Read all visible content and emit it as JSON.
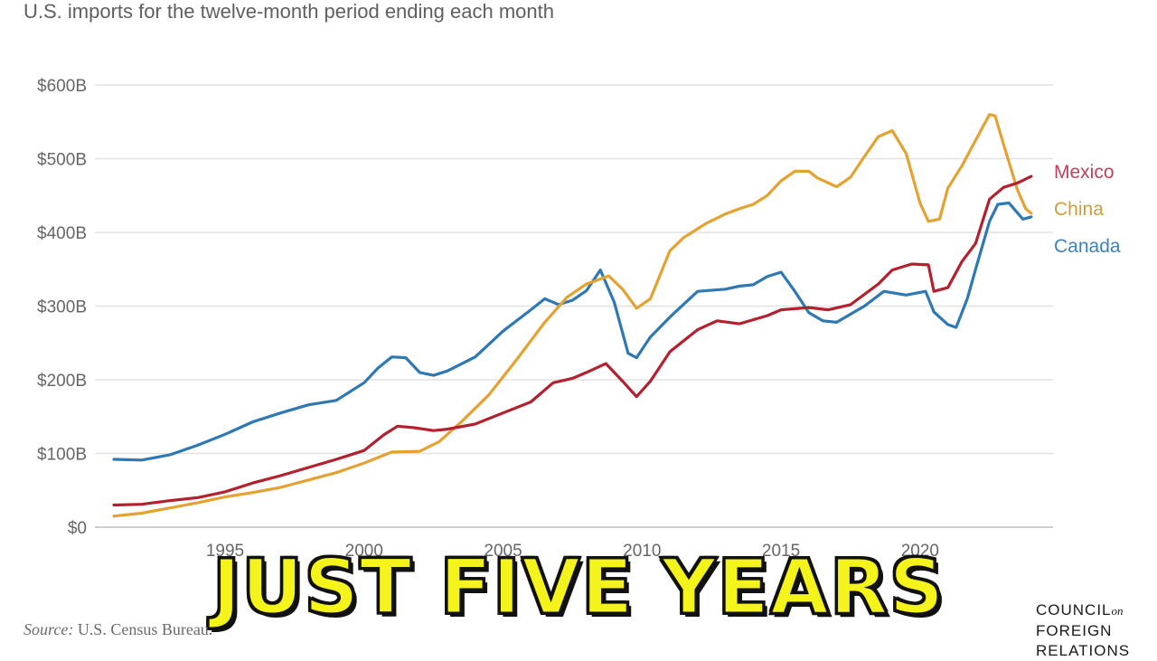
{
  "chart_data": {
    "type": "line",
    "title": "",
    "subtitle": "U.S. imports for the twelve-month period ending each month",
    "xlabel": "",
    "ylabel": "",
    "xlim": [
      1991,
      2024.2
    ],
    "ylim": [
      0,
      600
    ],
    "grid": true,
    "y_ticks": [
      {
        "value": 0,
        "label": "$0"
      },
      {
        "value": 100,
        "label": "$100B"
      },
      {
        "value": 200,
        "label": "$200B"
      },
      {
        "value": 300,
        "label": "$300B"
      },
      {
        "value": 400,
        "label": "$400B"
      },
      {
        "value": 500,
        "label": "$500B"
      },
      {
        "value": 600,
        "label": "$600B"
      }
    ],
    "x_ticks": [
      {
        "value": 1995,
        "label": "1995"
      },
      {
        "value": 2000,
        "label": "2000"
      },
      {
        "value": 2005,
        "label": "2005"
      },
      {
        "value": 2010,
        "label": "2010"
      },
      {
        "value": 2015,
        "label": "2015"
      },
      {
        "value": 2020,
        "label": "2020"
      }
    ],
    "legend_position": "right, at line ends",
    "series": [
      {
        "name": "Mexico",
        "color": "#b3202e",
        "label_color": "#c0425a",
        "points": [
          [
            1991.0,
            30
          ],
          [
            1992.0,
            31
          ],
          [
            1993.0,
            36
          ],
          [
            1994.0,
            40
          ],
          [
            1995.0,
            48
          ],
          [
            1996.0,
            60
          ],
          [
            1997.0,
            70
          ],
          [
            1998.0,
            81
          ],
          [
            1999.0,
            92
          ],
          [
            2000.0,
            104
          ],
          [
            2000.7,
            125
          ],
          [
            2001.2,
            137
          ],
          [
            2001.8,
            135
          ],
          [
            2002.5,
            131
          ],
          [
            2003.0,
            133
          ],
          [
            2004.0,
            140
          ],
          [
            2005.0,
            155
          ],
          [
            2006.0,
            170
          ],
          [
            2006.8,
            196
          ],
          [
            2007.5,
            202
          ],
          [
            2008.0,
            210
          ],
          [
            2008.7,
            222
          ],
          [
            2009.3,
            198
          ],
          [
            2009.8,
            177
          ],
          [
            2010.3,
            198
          ],
          [
            2011.0,
            238
          ],
          [
            2012.0,
            268
          ],
          [
            2012.7,
            280
          ],
          [
            2013.5,
            276
          ],
          [
            2014.5,
            287
          ],
          [
            2015.0,
            295
          ],
          [
            2016.0,
            298
          ],
          [
            2016.7,
            295
          ],
          [
            2017.5,
            302
          ],
          [
            2018.5,
            330
          ],
          [
            2019.0,
            349
          ],
          [
            2019.7,
            357
          ],
          [
            2020.3,
            356
          ],
          [
            2020.5,
            320
          ],
          [
            2021.0,
            325
          ],
          [
            2021.5,
            360
          ],
          [
            2022.0,
            385
          ],
          [
            2022.5,
            445
          ],
          [
            2023.0,
            461
          ],
          [
            2023.5,
            467
          ],
          [
            2024.0,
            476
          ]
        ]
      },
      {
        "name": "China",
        "color": "#e3a231",
        "label_color": "#cf9d3c",
        "points": [
          [
            1991.0,
            15
          ],
          [
            1992.0,
            19
          ],
          [
            1993.0,
            26
          ],
          [
            1994.0,
            33
          ],
          [
            1995.0,
            41
          ],
          [
            1996.0,
            47
          ],
          [
            1997.0,
            54
          ],
          [
            1998.0,
            64
          ],
          [
            1999.0,
            74
          ],
          [
            2000.0,
            87
          ],
          [
            2001.0,
            102
          ],
          [
            2002.0,
            103
          ],
          [
            2002.7,
            116
          ],
          [
            2003.5,
            143
          ],
          [
            2004.5,
            180
          ],
          [
            2005.5,
            228
          ],
          [
            2006.5,
            278
          ],
          [
            2007.3,
            312
          ],
          [
            2008.0,
            330
          ],
          [
            2008.8,
            341
          ],
          [
            2009.3,
            323
          ],
          [
            2009.8,
            297
          ],
          [
            2010.3,
            310
          ],
          [
            2011.0,
            375
          ],
          [
            2011.5,
            393
          ],
          [
            2012.3,
            412
          ],
          [
            2013.0,
            425
          ],
          [
            2013.5,
            432
          ],
          [
            2014.0,
            438
          ],
          [
            2014.5,
            450
          ],
          [
            2015.0,
            470
          ],
          [
            2015.5,
            483
          ],
          [
            2016.0,
            483
          ],
          [
            2016.3,
            474
          ],
          [
            2017.0,
            462
          ],
          [
            2017.5,
            475
          ],
          [
            2018.0,
            503
          ],
          [
            2018.5,
            530
          ],
          [
            2019.0,
            538
          ],
          [
            2019.5,
            507
          ],
          [
            2020.0,
            440
          ],
          [
            2020.3,
            415
          ],
          [
            2020.7,
            418
          ],
          [
            2021.0,
            460
          ],
          [
            2021.5,
            490
          ],
          [
            2022.0,
            525
          ],
          [
            2022.5,
            560
          ],
          [
            2022.7,
            558
          ],
          [
            2023.0,
            520
          ],
          [
            2023.5,
            458
          ],
          [
            2023.8,
            432
          ],
          [
            2024.0,
            426
          ]
        ]
      },
      {
        "name": "Canada",
        "color": "#2e78b3",
        "label_color": "#3d82bd",
        "points": [
          [
            1991.0,
            92
          ],
          [
            1992.0,
            91
          ],
          [
            1993.0,
            98
          ],
          [
            1994.0,
            111
          ],
          [
            1995.0,
            126
          ],
          [
            1996.0,
            143
          ],
          [
            1997.0,
            155
          ],
          [
            1998.0,
            166
          ],
          [
            1999.0,
            172
          ],
          [
            2000.0,
            196
          ],
          [
            2000.5,
            216
          ],
          [
            2001.0,
            231
          ],
          [
            2001.5,
            230
          ],
          [
            2002.0,
            210
          ],
          [
            2002.5,
            206
          ],
          [
            2003.0,
            212
          ],
          [
            2004.0,
            231
          ],
          [
            2005.0,
            266
          ],
          [
            2006.0,
            295
          ],
          [
            2006.5,
            310
          ],
          [
            2007.0,
            302
          ],
          [
            2007.5,
            308
          ],
          [
            2008.0,
            321
          ],
          [
            2008.5,
            349
          ],
          [
            2009.0,
            305
          ],
          [
            2009.5,
            236
          ],
          [
            2009.8,
            230
          ],
          [
            2010.3,
            258
          ],
          [
            2011.0,
            285
          ],
          [
            2012.0,
            320
          ],
          [
            2013.0,
            323
          ],
          [
            2013.5,
            327
          ],
          [
            2014.0,
            329
          ],
          [
            2014.5,
            340
          ],
          [
            2015.0,
            346
          ],
          [
            2015.5,
            320
          ],
          [
            2016.0,
            291
          ],
          [
            2016.5,
            280
          ],
          [
            2017.0,
            278
          ],
          [
            2018.0,
            300
          ],
          [
            2018.7,
            320
          ],
          [
            2019.5,
            315
          ],
          [
            2020.2,
            320
          ],
          [
            2020.5,
            292
          ],
          [
            2021.0,
            275
          ],
          [
            2021.3,
            271
          ],
          [
            2021.7,
            310
          ],
          [
            2022.0,
            350
          ],
          [
            2022.5,
            415
          ],
          [
            2022.8,
            438
          ],
          [
            2023.2,
            440
          ],
          [
            2023.7,
            418
          ],
          [
            2024.0,
            421
          ]
        ]
      }
    ]
  },
  "caption": "JUST FIVE YEARS",
  "source": {
    "label": "Source:",
    "text": "U.S. Census Bureau."
  },
  "logo": {
    "line1_a": "COUNCIL",
    "line1_b": "on",
    "line2": "FOREIGN",
    "line3": "RELATIONS"
  }
}
